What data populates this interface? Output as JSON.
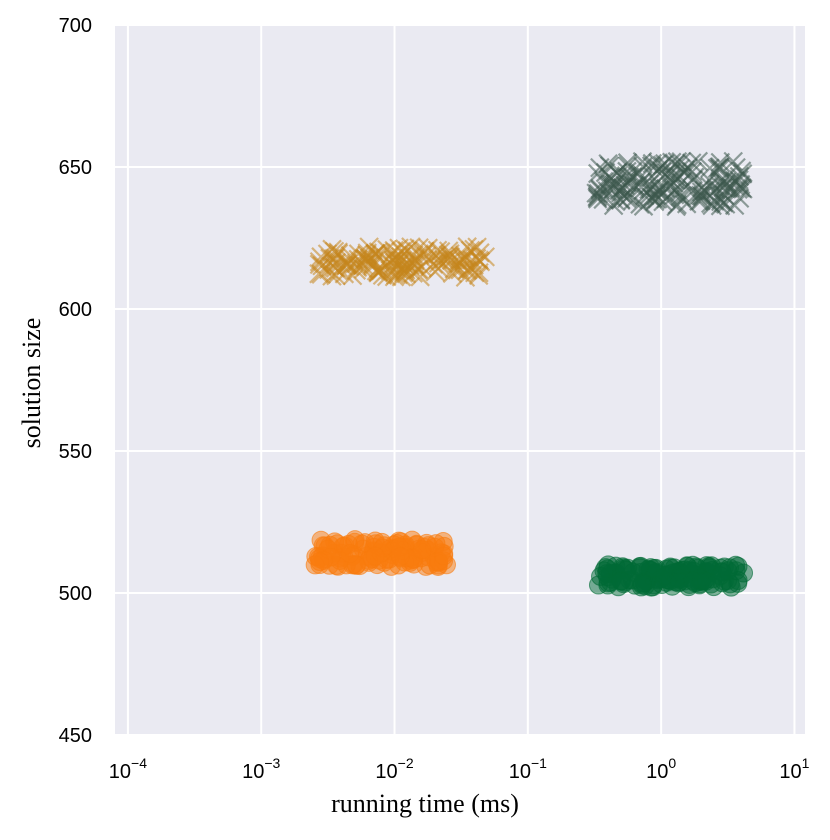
{
  "chart_data": {
    "type": "scatter",
    "title": "",
    "xlabel": "running time (ms)",
    "ylabel": "solution size",
    "xscale": "log",
    "xlim": [
      8e-05,
      12
    ],
    "ylim": [
      450,
      700
    ],
    "x_ticks": [
      {
        "base": "10",
        "exp": "−4",
        "value": 0.0001
      },
      {
        "base": "10",
        "exp": "−3",
        "value": 0.001
      },
      {
        "base": "10",
        "exp": "−2",
        "value": 0.01
      },
      {
        "base": "10",
        "exp": "−1",
        "value": 0.1
      },
      {
        "base": "10",
        "exp": "0",
        "value": 1
      },
      {
        "base": "10",
        "exp": "1",
        "value": 10
      }
    ],
    "y_ticks": [
      450,
      500,
      550,
      600,
      650,
      700
    ],
    "grid": true,
    "background": "#eaeaf2",
    "legend": "none",
    "clusters": [
      {
        "marker": "circle",
        "color": "#f97c0e",
        "x_range": [
          0.0025,
          0.025
        ],
        "y_range": [
          509,
          519
        ],
        "n": 120,
        "seed": 11
      },
      {
        "marker": "circle",
        "color": "#006a35",
        "x_range": [
          0.33,
          4.2
        ],
        "y_range": [
          502,
          510
        ],
        "n": 140,
        "seed": 23
      },
      {
        "marker": "x",
        "color": "#c4851b",
        "x_range": [
          0.0027,
          0.018
        ],
        "y_range": [
          611,
          622
        ],
        "n": 110,
        "seed": 37
      },
      {
        "marker": "x",
        "color": "#c4851b",
        "x_range": [
          0.019,
          0.048
        ],
        "y_range": [
          611,
          622
        ],
        "n": 45,
        "seed": 41
      },
      {
        "marker": "x",
        "color": "#3d584c",
        "x_range": [
          0.32,
          4.2
        ],
        "y_range": [
          636,
          652
        ],
        "n": 160,
        "seed": 53
      }
    ]
  }
}
